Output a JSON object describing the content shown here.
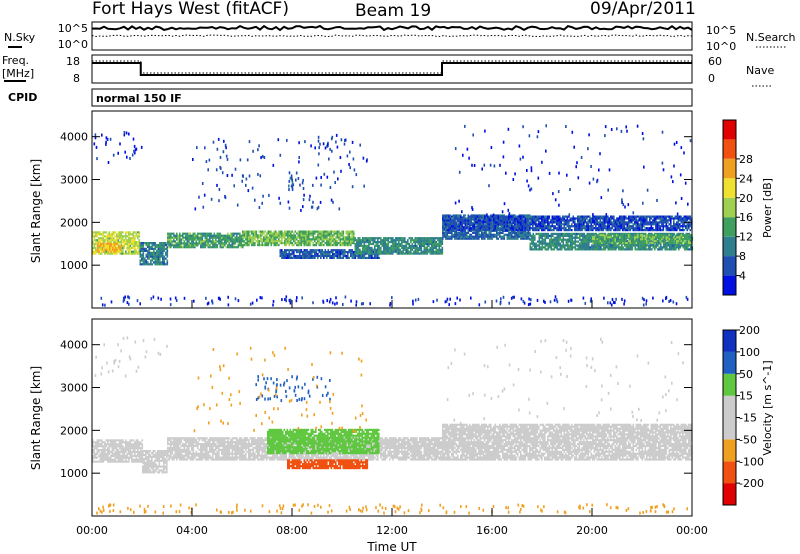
{
  "header": {
    "station": "Fort Hays West (fitACF)",
    "beam": "Beam 19",
    "date": "09/Apr/2011"
  },
  "noise_panel": {
    "left_label": "N.Sky",
    "right_label": "N.Search",
    "left_ticks": [
      "10^5",
      "10^0"
    ],
    "right_ticks": [
      "10^5",
      "10^0"
    ]
  },
  "freq_panel": {
    "left_label_1": "Freq.",
    "left_label_2": "[MHz]",
    "right_label": "Nave",
    "left_ticks": [
      "18",
      "8"
    ],
    "right_ticks": [
      "60",
      "0"
    ]
  },
  "cpid": {
    "label": "CPID",
    "value": "normal 150 IF"
  },
  "x_axis": {
    "label": "Time UT",
    "ticks": [
      "00:00",
      "04:00",
      "08:00",
      "12:00",
      "16:00",
      "20:00",
      "00:00"
    ]
  },
  "colors": {
    "power": [
      "#0010e0",
      "#1f4fb0",
      "#2f7f8f",
      "#3f9f5f",
      "#9fd04f",
      "#f0e030",
      "#f0a020",
      "#f05010",
      "#e00000"
    ],
    "velocity": [
      "#e00000",
      "#f05010",
      "#f0a020",
      "#cccccc",
      "#cccccc",
      "#60c840",
      "#2060c0",
      "#1030c0"
    ]
  },
  "chart_data": [
    {
      "type": "heatmap",
      "name": "power",
      "ylabel": "Slant Range [km]",
      "yticks": [
        1000,
        2000,
        3000,
        4000
      ],
      "ylim": [
        0,
        4600
      ],
      "xlim": [
        0,
        24
      ],
      "colorbar_label": "Power [dB]",
      "colorbar_ticks": [
        4,
        8,
        12,
        16,
        20,
        24,
        28
      ],
      "clim": [
        0,
        32
      ],
      "bands": [
        {
          "t0": 0.0,
          "t1": 1.9,
          "r0": 1250,
          "r1": 1750,
          "v": 17
        },
        {
          "t0": 0.2,
          "t1": 1.2,
          "r0": 1300,
          "r1": 1500,
          "v": 22
        },
        {
          "t0": 1.9,
          "t1": 3.0,
          "r0": 1000,
          "r1": 1500,
          "v": 9
        },
        {
          "t0": 3.0,
          "t1": 6.0,
          "r0": 1400,
          "r1": 1750,
          "v": 12
        },
        {
          "t0": 6.0,
          "t1": 10.5,
          "r0": 1450,
          "r1": 1800,
          "v": 14
        },
        {
          "t0": 7.5,
          "t1": 11.5,
          "r0": 1150,
          "r1": 1350,
          "v": 6
        },
        {
          "t0": 10.5,
          "t1": 14.0,
          "r0": 1250,
          "r1": 1650,
          "v": 10
        },
        {
          "t0": 14.0,
          "t1": 17.5,
          "r0": 1600,
          "r1": 2150,
          "v": 7
        },
        {
          "t0": 17.5,
          "t1": 24.0,
          "r0": 1350,
          "r1": 1750,
          "v": 10
        },
        {
          "t0": 20.0,
          "t1": 24.0,
          "r0": 1500,
          "r1": 1700,
          "v": 13
        },
        {
          "t0": 14.0,
          "t1": 24.0,
          "r0": 1800,
          "r1": 2150,
          "v": 5
        }
      ],
      "clusters": [
        {
          "t0": 0.0,
          "t1": 2.0,
          "r0": 3400,
          "r1": 4200,
          "v": 3,
          "n": 30
        },
        {
          "t0": 4.0,
          "t1": 11.0,
          "r0": 2300,
          "r1": 4000,
          "v": 4,
          "n": 120
        },
        {
          "t0": 7.8,
          "t1": 8.5,
          "r0": 2800,
          "r1": 3200,
          "v": 6,
          "n": 20
        },
        {
          "t0": 9.0,
          "t1": 10.5,
          "r0": 3500,
          "r1": 4100,
          "v": 4,
          "n": 20
        },
        {
          "t0": 14.5,
          "t1": 24.0,
          "r0": 2200,
          "r1": 4300,
          "v": 3,
          "n": 120
        },
        {
          "t0": 0.0,
          "t1": 24.0,
          "r0": 100,
          "r1": 300,
          "v": 3,
          "n": 150
        }
      ]
    },
    {
      "type": "heatmap",
      "name": "velocity",
      "ylabel": "Slant Range [km]",
      "yticks": [
        1000,
        2000,
        3000,
        4000
      ],
      "ylim": [
        0,
        4600
      ],
      "xlim": [
        0,
        24
      ],
      "colorbar_label": "Velocity [m s^-1]",
      "colorbar_ticks": [
        -200,
        -100,
        -50,
        -15,
        15,
        50,
        100,
        200
      ],
      "bands": [
        {
          "t0": 0.0,
          "t1": 2.0,
          "r0": 1250,
          "r1": 1750,
          "v": 0
        },
        {
          "t0": 2.0,
          "t1": 3.0,
          "r0": 1000,
          "r1": 1500,
          "v": 0
        },
        {
          "t0": 3.0,
          "t1": 14.0,
          "r0": 1300,
          "r1": 1800,
          "v": 0
        },
        {
          "t0": 7.0,
          "t1": 11.5,
          "r0": 1450,
          "r1": 2000,
          "v": 60
        },
        {
          "t0": 7.8,
          "t1": 11.0,
          "r0": 1100,
          "r1": 1300,
          "v": -60
        },
        {
          "t0": 14.0,
          "t1": 24.0,
          "r0": 1300,
          "r1": 2150,
          "v": 0
        }
      ],
      "clusters": [
        {
          "t0": 0.0,
          "t1": 3.0,
          "r0": 3200,
          "r1": 4200,
          "v": 30,
          "n": 30
        },
        {
          "t0": 6.5,
          "t1": 9.5,
          "r0": 2700,
          "r1": 3300,
          "v": 180,
          "n": 60
        },
        {
          "t0": 4.0,
          "t1": 11.0,
          "r0": 2000,
          "r1": 4000,
          "v": -20,
          "n": 80
        },
        {
          "t0": 14.0,
          "t1": 24.0,
          "r0": 2200,
          "r1": 4200,
          "v": 10,
          "n": 80
        },
        {
          "t0": 0.0,
          "t1": 24.0,
          "r0": 100,
          "r1": 300,
          "v": -30,
          "n": 150
        }
      ]
    }
  ]
}
